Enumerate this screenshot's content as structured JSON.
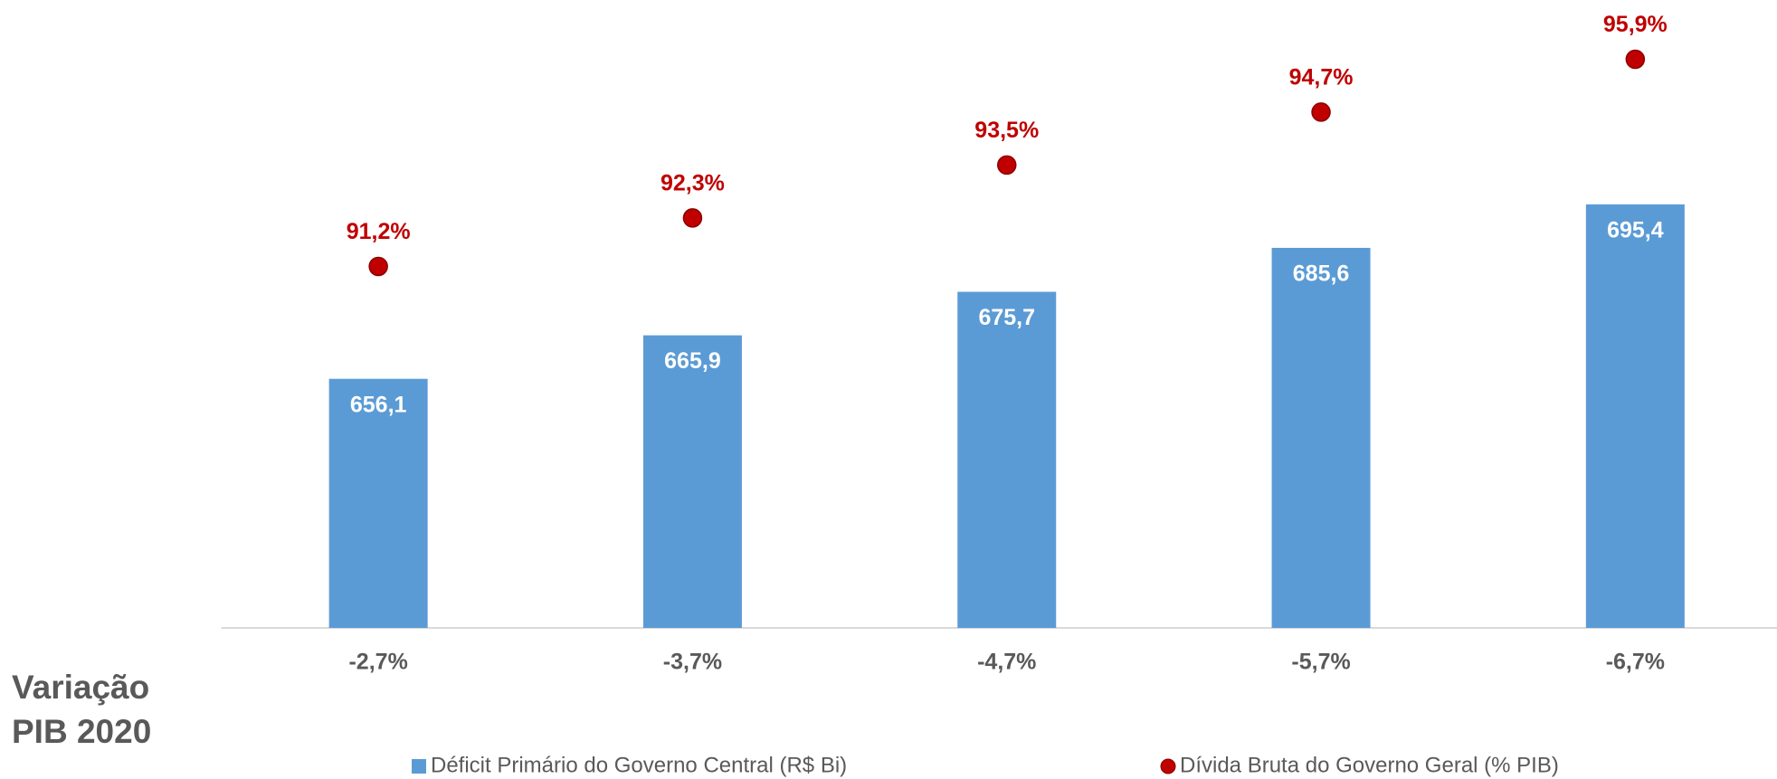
{
  "chart_data": {
    "type": "bar",
    "x_label": "Variação PIB 2020",
    "categories": [
      "-2,7%",
      "-3,7%",
      "-4,7%",
      "-5,7%",
      "-6,7%"
    ],
    "ylim": [
      600,
      740
    ],
    "y2lim": [
      83,
      97.1
    ],
    "legend": "bottom",
    "series": [
      {
        "name": "Déficit Primário do Governo Central (R$ Bi)",
        "type": "bar",
        "color": "#5b9bd5",
        "values": [
          656.1,
          665.9,
          675.7,
          685.6,
          695.4
        ],
        "value_labels": [
          "656,1",
          "665,9",
          "675,7",
          "685,6",
          "695,4"
        ]
      },
      {
        "name": "Dívida Bruta do Governo Geral (% PIB)",
        "type": "scatter",
        "axis": "y2",
        "color": "#c00000",
        "values": [
          91.2,
          92.3,
          93.5,
          94.7,
          95.9
        ],
        "value_labels": [
          "91,2%",
          "92,3%",
          "93,5%",
          "94,7%",
          "95,9%"
        ]
      }
    ]
  }
}
